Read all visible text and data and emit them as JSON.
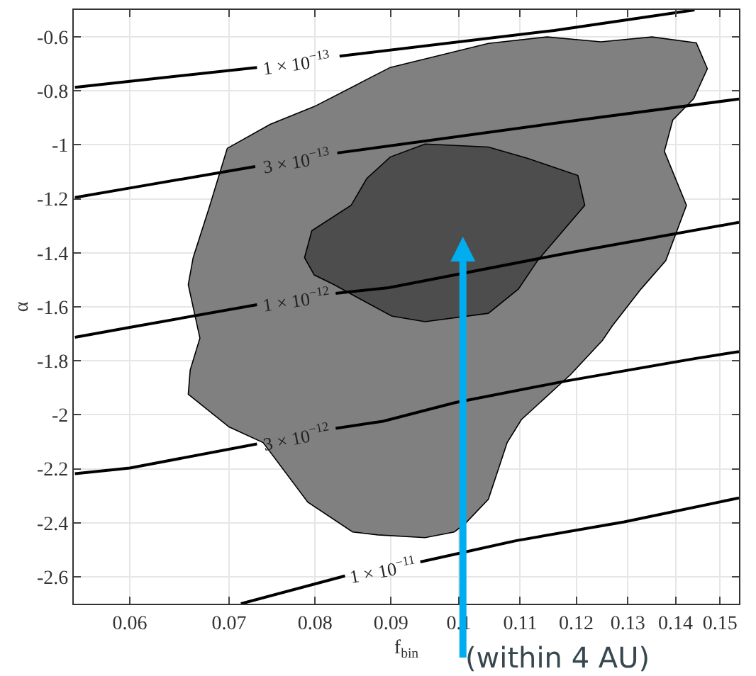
{
  "chart_data": {
    "type": "line",
    "xlabel": "f$_{bin}$",
    "ylabel": "α",
    "log": "x",
    "grid": true,
    "legend": false,
    "xlim": [
      0.055,
      0.1545
    ],
    "xticks": [
      0.06,
      0.07,
      0.08,
      0.09,
      0.1,
      0.11,
      0.12,
      0.13,
      0.14,
      0.15
    ],
    "ylim": [
      -2.7,
      -0.5
    ],
    "yticks": [
      -2.6,
      -2.4,
      -2.2,
      -2,
      -1.8,
      -1.6,
      -1.4,
      -1.2,
      -1,
      -0.8,
      -0.6
    ],
    "series": [
      {
        "type": "area",
        "color": "#808080",
        "x": [
          0.0698,
          0.0746,
          0.0799,
          0.085,
          0.0899,
          0.1047,
          0.1147,
          0.1247,
          0.135,
          0.1446,
          0.1471,
          0.144,
          0.1394,
          0.1376,
          0.1424,
          0.1379,
          0.1327,
          0.1269,
          0.125,
          0.119,
          0.1102,
          0.1078,
          0.1047,
          0.101,
          0.0993,
          0.0949,
          0.0882,
          0.0848,
          0.0791,
          0.0738,
          0.07,
          0.0657,
          0.0659,
          0.0669,
          0.0657,
          0.0662,
          0.0679,
          0.0698
        ],
        "values": [
          -1.013,
          -0.924,
          -0.858,
          -0.782,
          -0.713,
          -0.624,
          -0.6,
          -0.618,
          -0.6,
          -0.622,
          -0.718,
          -0.829,
          -0.908,
          -1.024,
          -1.224,
          -1.429,
          -1.534,
          -1.671,
          -1.724,
          -1.85,
          -2.018,
          -2.103,
          -2.313,
          -2.403,
          -2.434,
          -2.455,
          -2.445,
          -2.434,
          -2.324,
          -2.103,
          -2.045,
          -1.924,
          -1.834,
          -1.716,
          -1.518,
          -1.418,
          -1.229,
          -1.013
        ]
      },
      {
        "type": "area",
        "color": "#4d4d4d",
        "x": [
          0.0949,
          0.1047,
          0.1113,
          0.1203,
          0.1216,
          0.113,
          0.1097,
          0.1047,
          0.0949,
          0.0901,
          0.0858,
          0.0824,
          0.0799,
          0.0787,
          0.0796,
          0.0846,
          0.0867,
          0.0899,
          0.0949
        ],
        "values": [
          -0.997,
          -1.008,
          -1.05,
          -1.113,
          -1.224,
          -1.429,
          -1.534,
          -1.624,
          -1.655,
          -1.634,
          -1.571,
          -1.518,
          -1.482,
          -1.418,
          -1.318,
          -1.224,
          -1.124,
          -1.045,
          -0.997
        ]
      },
      {
        "name": "1 × 10$^{−13}$",
        "color": "#000000",
        "x": [
          0.0551,
          0.0731,
          0.0778,
          0.0831,
          0.116,
          0.1442
        ],
        "values": [
          -0.787,
          -0.713,
          null,
          -0.671,
          -0.576,
          -0.5
        ]
      },
      {
        "name": "3 × 10$^{−13}$",
        "color": "#000000",
        "x": [
          0.0551,
          0.06,
          0.0729,
          0.0778,
          0.0828,
          0.116,
          0.1545
        ],
        "values": [
          -1.195,
          -1.16,
          -1.08,
          null,
          -1.03,
          -0.92,
          -0.83
        ]
      },
      {
        "name": "1 × 10$^{−12}$",
        "color": "#000000",
        "x": [
          0.0551,
          0.06,
          0.0731,
          0.0778,
          0.0826,
          0.0897,
          0.1178,
          0.1545
        ],
        "values": [
          -1.713,
          -1.676,
          -1.592,
          null,
          -1.55,
          -1.529,
          -1.403,
          -1.287
        ]
      },
      {
        "name": "3 × 10$^{−12}$",
        "color": "#000000",
        "x": [
          0.0551,
          0.06,
          0.0731,
          0.0778,
          0.0826,
          0.0889,
          0.0994,
          0.1178,
          0.1442,
          0.1545
        ],
        "values": [
          -2.218,
          -2.197,
          -2.108,
          null,
          -2.05,
          -2.024,
          -1.955,
          -1.876,
          -1.792,
          -1.766
        ]
      },
      {
        "name": "1 × 10$^{−11}$",
        "color": "#000000",
        "x": [
          0.0713,
          0.0838,
          0.0887,
          0.0942,
          0.1094,
          0.1293,
          0.1545
        ],
        "values": [
          -2.7,
          -2.597,
          null,
          -2.545,
          -2.466,
          -2.397,
          -2.308
        ]
      }
    ],
    "annotations": [
      "(within 4 AU)"
    ]
  }
}
